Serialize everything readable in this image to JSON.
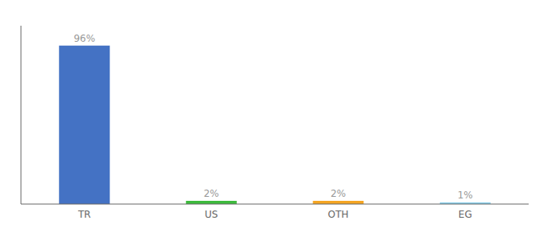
{
  "chart_data": {
    "type": "bar",
    "categories": [
      "TR",
      "US",
      "OTH",
      "EG"
    ],
    "values": [
      96,
      2,
      2,
      1
    ],
    "value_labels": [
      "96%",
      "2%",
      "2%",
      "1%"
    ],
    "colors": [
      "#4472c4",
      "#3dbb3d",
      "#f5a623",
      "#87ceeb"
    ],
    "ylim": [
      0,
      108
    ],
    "data_labels": true,
    "tick_labels": "x",
    "grid": false
  }
}
